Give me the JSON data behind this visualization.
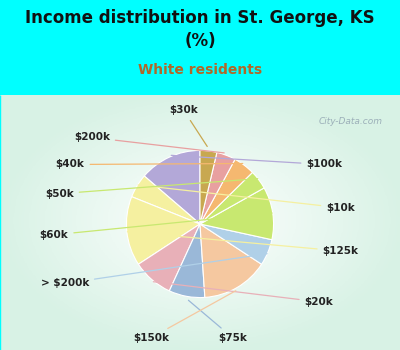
{
  "title": "Income distribution in St. George, KS\n(%)",
  "subtitle": "White residents",
  "title_color": "#111111",
  "subtitle_color": "#b06828",
  "bg_cyan": "#00ffff",
  "bg_chart_corners": "#c8e8d8",
  "bg_chart_center": "#e8f5f0",
  "labels": [
    "$100k",
    "$10k",
    "$125k",
    "$20k",
    "$75k",
    "$150k",
    "> $200k",
    "$60k",
    "$50k",
    "$40k",
    "$200k",
    "$30k"
  ],
  "sizes": [
    13.0,
    5.0,
    14.5,
    8.5,
    7.5,
    14.0,
    5.5,
    11.0,
    4.0,
    4.5,
    4.0,
    3.5
  ],
  "colors": [
    "#b3a8d8",
    "#f5f0a0",
    "#f5f0a0",
    "#e8b0b8",
    "#9ab8d8",
    "#f5c8a0",
    "#b0d0e8",
    "#c8e870",
    "#c8e870",
    "#f5b870",
    "#e8a0a0",
    "#c8a850"
  ],
  "startangle": 90,
  "label_fontsize": 7.5,
  "watermark": "City-Data.com"
}
